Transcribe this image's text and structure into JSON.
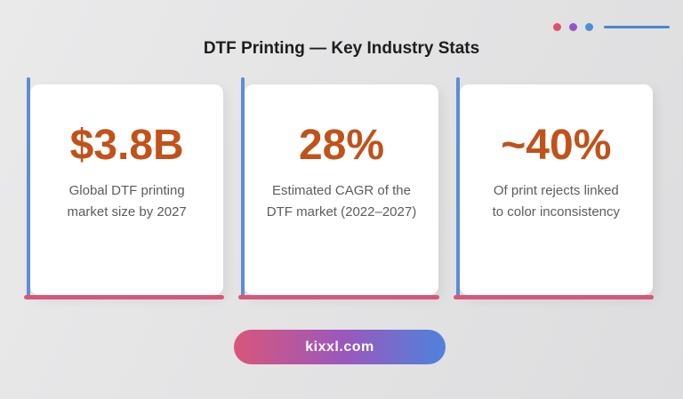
{
  "page": {
    "title": "DTF Printing — Key Industry Stats"
  },
  "decor": {
    "dot_colors": [
      "#e0506e",
      "#9456c4",
      "#4a8fd9"
    ],
    "line_color": "#4a86cd"
  },
  "stats": [
    {
      "value": "$3.8B",
      "label": "Global DTF printing market size by 2027",
      "label_line1": "Global DTF printing",
      "label_line2": "market size by 2027"
    },
    {
      "value": "28%",
      "label": "Estimated CAGR of the DTF market (2022–2027)",
      "label_line1": "Estimated CAGR of the",
      "label_line2": "DTF market (2022–2027)"
    },
    {
      "value": "~40%",
      "label": "Of print rejects linked to color inconsistency",
      "label_line1": "Of print rejects linked",
      "label_line2": "to color inconsistency"
    }
  ],
  "colors": {
    "stat_value": "#c0521a",
    "stat_label": "#5c5c5c",
    "accent_blue": "#5b8fd0",
    "accent_pink": "#d9567a"
  },
  "footer": {
    "button_label": "kixxl.com",
    "gradient_start": "#d9567a",
    "gradient_mid": "#9a58bd",
    "gradient_end": "#4f82dc"
  }
}
